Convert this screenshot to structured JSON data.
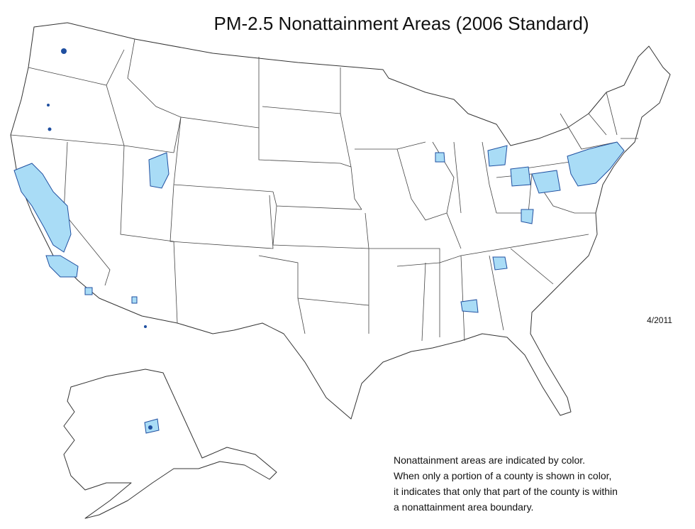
{
  "title": "PM-2.5 Nonattainment Areas (2006 Standard)",
  "date": "4/2011",
  "note": {
    "lines": [
      "Nonattainment areas are indicated by color.",
      "When only a portion of a county is shown in color,",
      "it indicates that only that part of the county is within",
      "a nonattainment area boundary."
    ]
  }
}
